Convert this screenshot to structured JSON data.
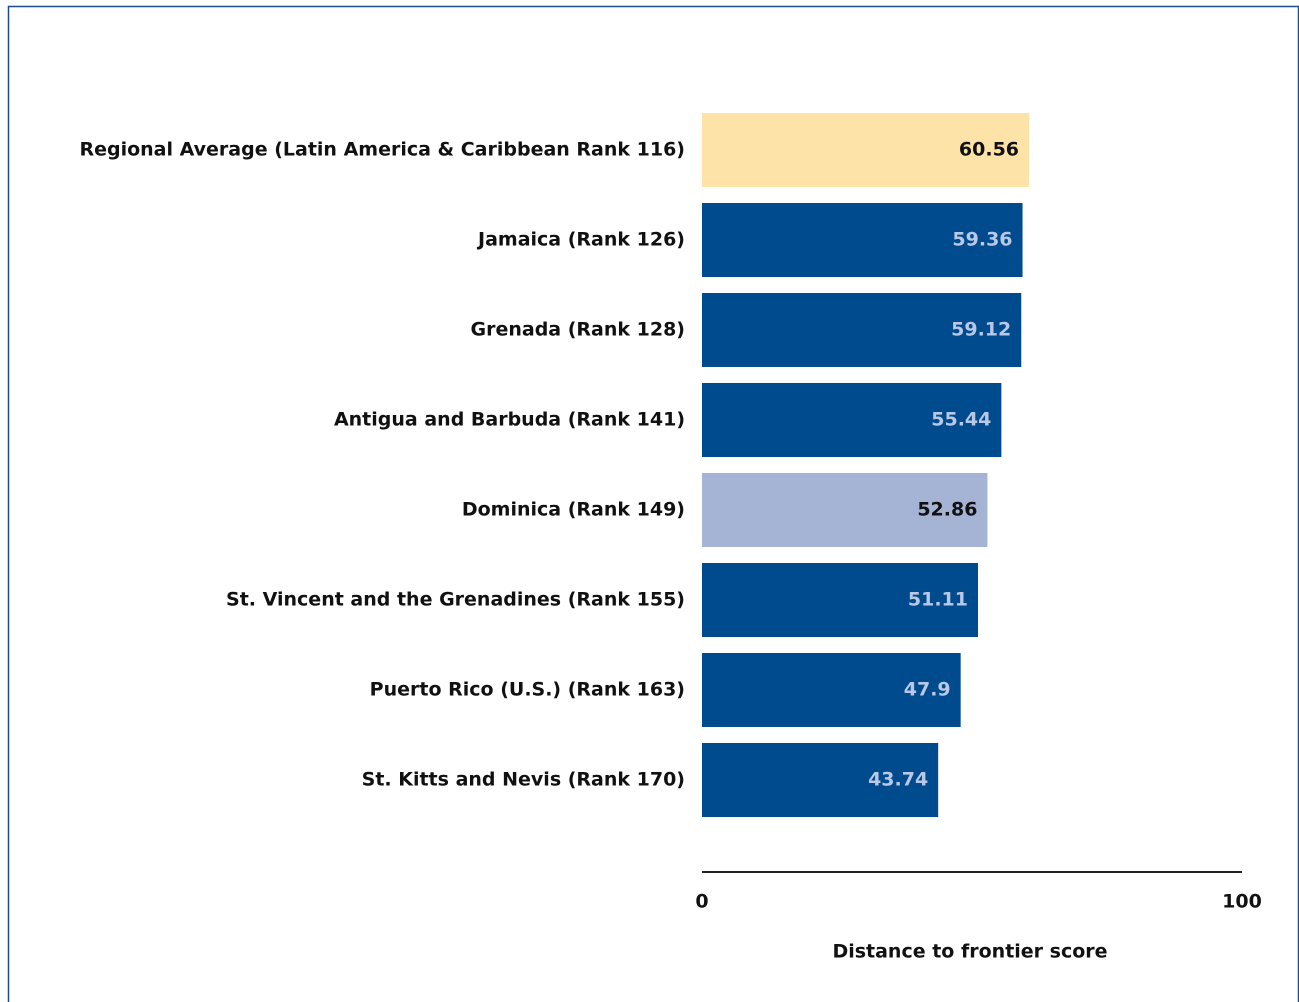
{
  "chart_data": {
    "type": "bar",
    "orientation": "horizontal",
    "categories": [
      "Regional Average (Latin America & Caribbean Rank 116)",
      "Jamaica (Rank 126)",
      "Grenada (Rank 128)",
      "Antigua and Barbuda (Rank 141)",
      "Dominica (Rank 149)",
      "St. Vincent and the Grenadines (Rank 155)",
      "Puerto Rico (U.S.) (Rank 163)",
      "St. Kitts and Nevis (Rank 170)"
    ],
    "values": [
      60.56,
      59.36,
      59.12,
      55.44,
      52.86,
      51.11,
      47.9,
      43.74
    ],
    "colors": [
      "#fde3a7",
      "#004b8d",
      "#004b8d",
      "#004b8d",
      "#a5b3d4",
      "#004b8d",
      "#004b8d",
      "#004b8d"
    ],
    "xlim": [
      0,
      100
    ],
    "xticks": [
      0,
      100
    ],
    "xlabel": "Distance to frontier score"
  }
}
